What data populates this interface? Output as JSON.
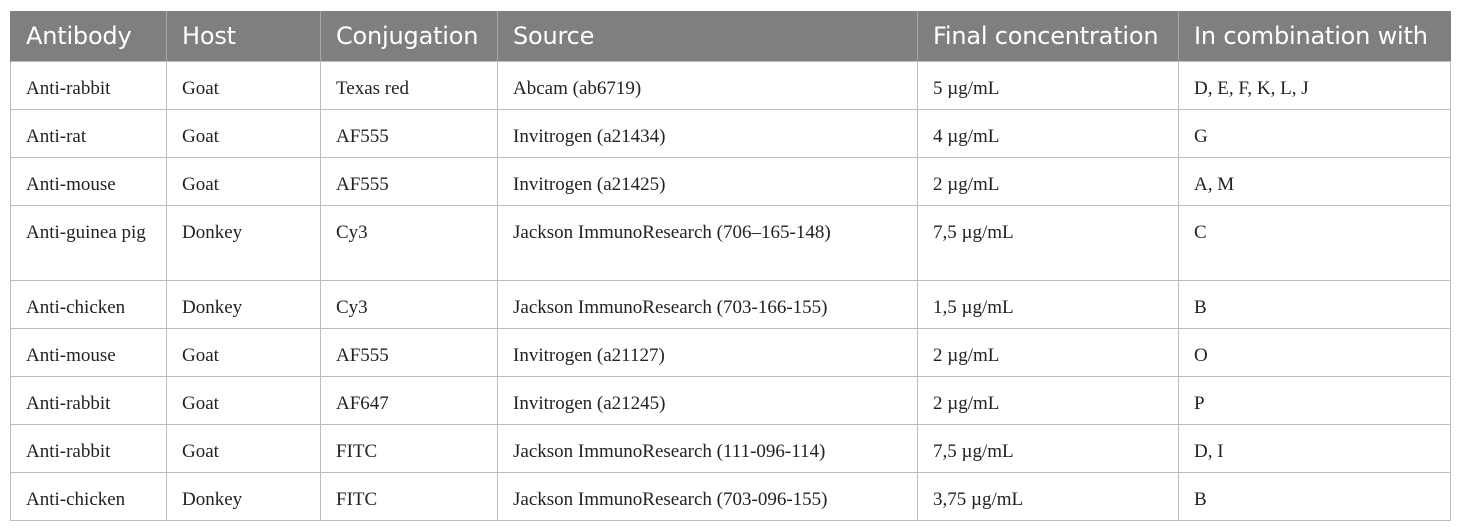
{
  "table": {
    "headers": [
      "Antibody",
      "Host",
      "Conjugation",
      "Source",
      "Final concentration",
      "In combination with"
    ],
    "rows": [
      [
        "Anti-rabbit",
        "Goat",
        "Texas red",
        "Abcam (ab6719)",
        "5 µg/mL",
        "D, E, F, K, L, J"
      ],
      [
        "Anti-rat",
        "Goat",
        "AF555",
        "Invitrogen (a21434)",
        "4 µg/mL",
        "G"
      ],
      [
        "Anti-mouse",
        "Goat",
        "AF555",
        "Invitrogen (a21425)",
        "2 µg/mL",
        "A, M"
      ],
      [
        "Anti-guinea pig",
        "Donkey",
        "Cy3",
        "Jackson ImmunoResearch (706–165-148)",
        "7,5 µg/mL",
        "C"
      ],
      [
        "Anti-chicken",
        "Donkey",
        "Cy3",
        "Jackson ImmunoResearch (703-166-155)",
        "1,5 µg/mL",
        "B"
      ],
      [
        "Anti-mouse",
        "Goat",
        "AF555",
        "Invitrogen (a21127)",
        "2 µg/mL",
        "O"
      ],
      [
        "Anti-rabbit",
        "Goat",
        "AF647",
        "Invitrogen (a21245)",
        "2 µg/mL",
        "P"
      ],
      [
        "Anti-rabbit",
        "Goat",
        "FITC",
        "Jackson ImmunoResearch (111-096-114)",
        "7,5 µg/mL",
        "D, I"
      ],
      [
        "Anti-chicken",
        "Donkey",
        "FITC",
        "Jackson ImmunoResearch (703-096-155)",
        "3,75 µg/mL",
        "B"
      ]
    ]
  }
}
